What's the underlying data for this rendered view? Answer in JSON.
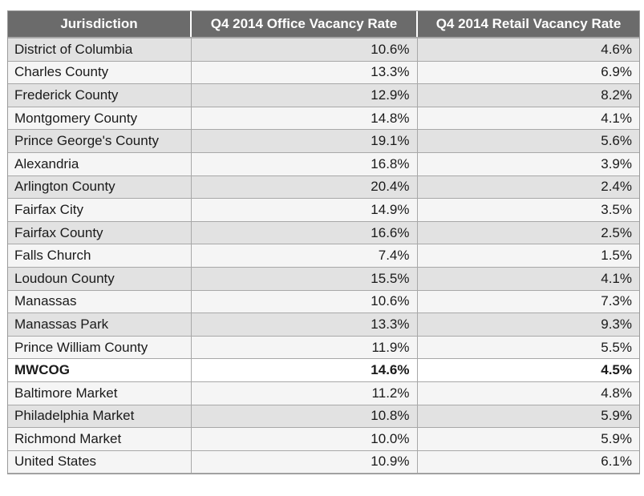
{
  "chart_data": {
    "type": "table",
    "columns": [
      "Jurisdiction",
      "Q4 2014 Office Vacancy Rate",
      "Q4 2014 Retail Vacancy Rate"
    ],
    "rows": [
      {
        "jurisdiction": "District of Columbia",
        "office": "10.6%",
        "retail": "4.6%"
      },
      {
        "jurisdiction": "Charles County",
        "office": "13.3%",
        "retail": "6.9%"
      },
      {
        "jurisdiction": "Frederick County",
        "office": "12.9%",
        "retail": "8.2%"
      },
      {
        "jurisdiction": "Montgomery County",
        "office": "14.8%",
        "retail": "4.1%"
      },
      {
        "jurisdiction": "Prince George's County",
        "office": "19.1%",
        "retail": "5.6%"
      },
      {
        "jurisdiction": "Alexandria",
        "office": "16.8%",
        "retail": "3.9%"
      },
      {
        "jurisdiction": "Arlington County",
        "office": "20.4%",
        "retail": "2.4%"
      },
      {
        "jurisdiction": "Fairfax City",
        "office": "14.9%",
        "retail": "3.5%"
      },
      {
        "jurisdiction": "Fairfax County",
        "office": "16.6%",
        "retail": "2.5%"
      },
      {
        "jurisdiction": "Falls Church",
        "office": "7.4%",
        "retail": "1.5%"
      },
      {
        "jurisdiction": "Loudoun County",
        "office": "15.5%",
        "retail": "4.1%"
      },
      {
        "jurisdiction": "Manassas",
        "office": "10.6%",
        "retail": "7.3%"
      },
      {
        "jurisdiction": "Manassas Park",
        "office": "13.3%",
        "retail": "9.3%"
      },
      {
        "jurisdiction": "Prince William County",
        "office": "11.9%",
        "retail": "5.5%"
      },
      {
        "jurisdiction": "MWCOG",
        "office": "14.6%",
        "retail": "4.5%",
        "bold": true
      },
      {
        "jurisdiction": "Baltimore Market",
        "office": "11.2%",
        "retail": "4.8%"
      },
      {
        "jurisdiction": "Philadelphia Market",
        "office": "10.8%",
        "retail": "5.9%"
      },
      {
        "jurisdiction": "Richmond Market",
        "office": "10.0%",
        "retail": "5.9%"
      },
      {
        "jurisdiction": "United States",
        "office": "10.9%",
        "retail": "6.1%"
      }
    ]
  },
  "colors": {
    "header_bg": "#6b6b6b",
    "header_text": "#ffffff",
    "row_shade": "#e2e2e2",
    "row_light": "#f5f5f5",
    "grid": "#a8a8a8"
  }
}
